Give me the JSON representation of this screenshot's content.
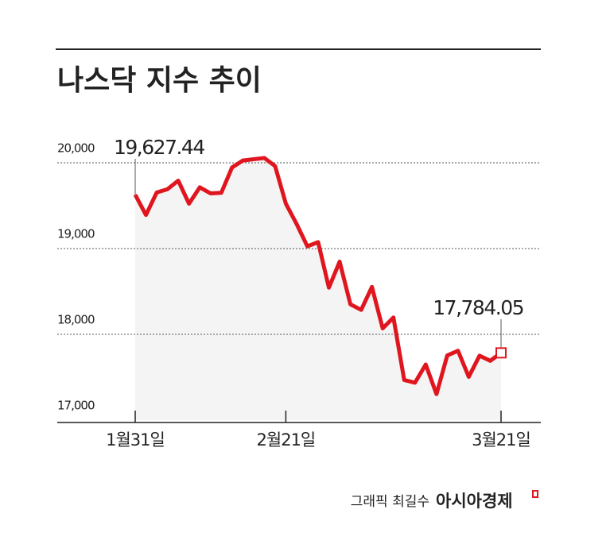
{
  "chart_data": {
    "type": "line",
    "title": "나스닥 지수 추이",
    "categories": [
      "1월31일",
      null,
      null,
      null,
      null,
      null,
      null,
      null,
      null,
      null,
      null,
      null,
      null,
      null,
      "2월21일",
      null,
      null,
      null,
      null,
      null,
      null,
      null,
      null,
      null,
      null,
      null,
      null,
      null,
      null,
      null,
      null,
      null,
      null,
      null,
      "3월21일"
    ],
    "series": [
      {
        "name": "나스닥",
        "color": "#e0161f",
        "values": [
          19627.44,
          19391.96,
          19654.02,
          19692.33,
          19791.99,
          19523.4,
          19714.27,
          19643.86,
          19649.95,
          19945.64,
          20026.77,
          20041.26,
          20056.25,
          19962.36,
          19524.01,
          19286.93,
          19026.39,
          19075.26,
          18544.42,
          18847.28,
          18350.19,
          18285.16,
          18552.73,
          18069.26,
          18196.22,
          17468.32,
          17436.1,
          17648.45,
          17303.01,
          17754.09,
          17808.66,
          17504.12,
          17750.79,
          17691.63,
          17784.05
        ],
        "value_labels": [
          "19,627.44",
          null,
          null,
          null,
          null,
          null,
          null,
          null,
          null,
          null,
          null,
          null,
          null,
          null,
          null,
          null,
          null,
          null,
          null,
          null,
          null,
          null,
          null,
          null,
          null,
          null,
          null,
          null,
          null,
          null,
          null,
          null,
          null,
          null,
          "17,784.05"
        ]
      }
    ],
    "ylim": [
      17000,
      20400
    ],
    "yticks": [
      {
        "value": 17000,
        "label": "17,000"
      },
      {
        "value": 18000,
        "label": "18,000"
      },
      {
        "value": 19000,
        "label": "19,000"
      },
      {
        "value": 20000,
        "label": "20,000"
      }
    ],
    "grid": true,
    "area_color": "#f4f4f4",
    "credit": "그래픽 최길수",
    "publisher": "아시아경제"
  }
}
